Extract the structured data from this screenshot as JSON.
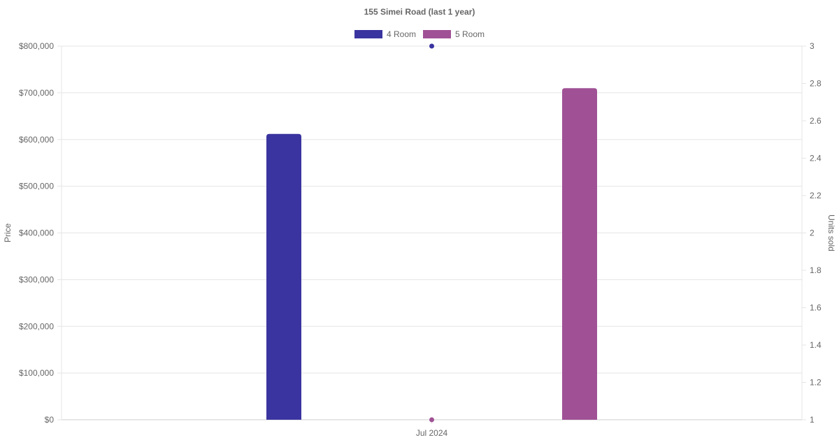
{
  "chart_data": {
    "type": "bar",
    "title": "155 Simei Road (last 1 year)",
    "categories": [
      "Jul 2024"
    ],
    "y_left": {
      "label": "Price",
      "min": 0,
      "max": 800000,
      "step": 100000,
      "ticks": [
        "$0",
        "$100,000",
        "$200,000",
        "$300,000",
        "$400,000",
        "$500,000",
        "$600,000",
        "$700,000",
        "$800,000"
      ]
    },
    "y_right": {
      "label": "Units sold",
      "min": 1,
      "max": 3,
      "step": 0.2,
      "ticks": [
        "1",
        "1.2",
        "1.4",
        "1.6",
        "1.8",
        "2",
        "2.2",
        "2.4",
        "2.6",
        "2.8",
        "3"
      ]
    },
    "series": [
      {
        "name": "4 Room",
        "color": "#3a34a0",
        "price": 612000,
        "units_sold": 3
      },
      {
        "name": "5 Room",
        "color": "#a05195",
        "price": 710000,
        "units_sold": 1
      }
    ],
    "grid": true,
    "legend_position": "top"
  }
}
